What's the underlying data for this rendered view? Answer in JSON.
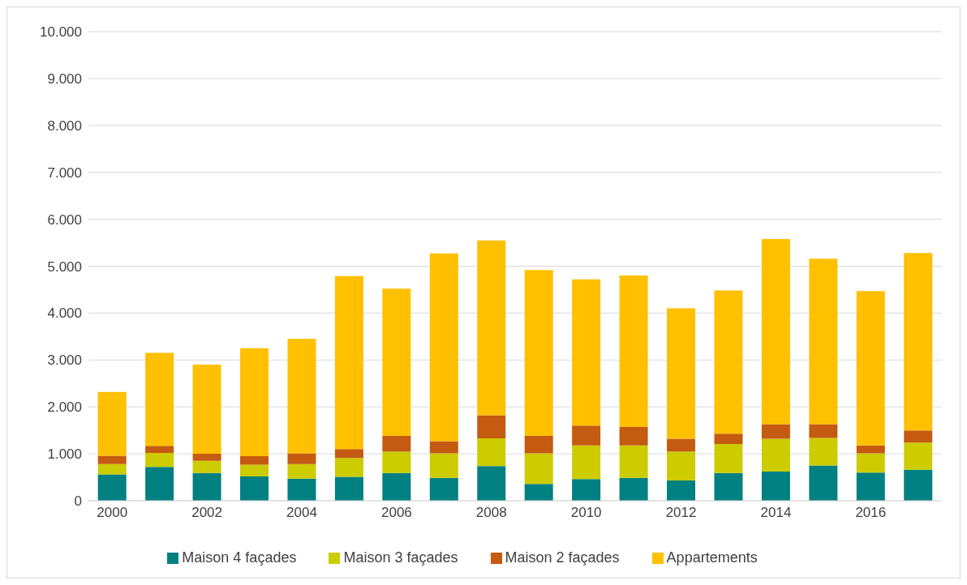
{
  "chart_data": {
    "type": "bar",
    "stacked": true,
    "categories": [
      "2000",
      null,
      "2002",
      null,
      "2004",
      null,
      "2006",
      null,
      "2008",
      null,
      "2010",
      null,
      "2012",
      null,
      "2014",
      null,
      "2016",
      null
    ],
    "series": [
      {
        "name": "Maison 4 façades",
        "color": "#008080",
        "values": [
          560,
          720,
          590,
          520,
          470,
          510,
          590,
          490,
          740,
          360,
          460,
          490,
          430,
          590,
          620,
          750,
          600,
          660
        ]
      },
      {
        "name": "Maison 3 façades",
        "color": "#cccc00",
        "values": [
          220,
          300,
          260,
          250,
          310,
          400,
          460,
          520,
          590,
          650,
          720,
          690,
          620,
          620,
          700,
          590,
          410,
          580
        ]
      },
      {
        "name": "Maison 2 façades",
        "color": "#c55a11",
        "values": [
          180,
          150,
          150,
          180,
          230,
          190,
          330,
          260,
          490,
          370,
          420,
          390,
          270,
          220,
          310,
          290,
          170,
          260
        ]
      },
      {
        "name": "Appartements",
        "color": "#ffc000",
        "values": [
          1360,
          1980,
          1900,
          2300,
          2440,
          3690,
          3140,
          4000,
          3730,
          3540,
          3120,
          3230,
          2780,
          3050,
          3950,
          3530,
          3290,
          3780
        ]
      }
    ],
    "ylim": [
      0,
      10000
    ],
    "yticks": [
      0,
      {
        "value": 1000,
        "label": "1.000"
      },
      {
        "value": 2000,
        "label": "2.000"
      },
      {
        "value": 3000,
        "label": "3.000"
      },
      {
        "value": 4000,
        "label": "4.000"
      },
      {
        "value": 5000,
        "label": "5.000"
      },
      {
        "value": 6000,
        "label": "6.000"
      },
      {
        "value": 7000,
        "label": "7.000"
      },
      {
        "value": 8000,
        "label": "8.000"
      },
      {
        "value": 9000,
        "label": "9.000"
      },
      {
        "value": 10000,
        "label": "10.000"
      }
    ],
    "grid": "y",
    "legend": "bottom"
  }
}
